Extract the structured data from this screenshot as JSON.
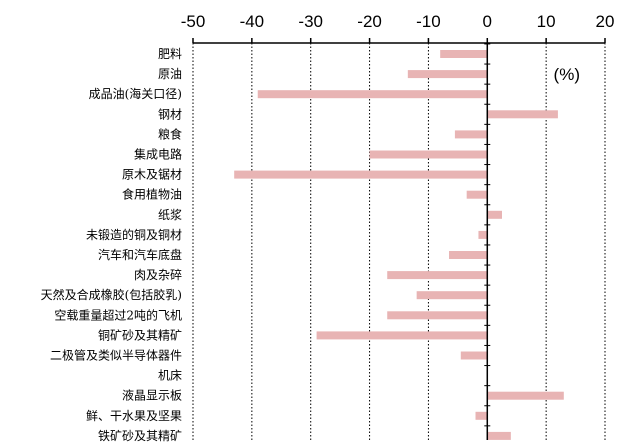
{
  "chart_data": {
    "type": "bar",
    "orientation": "horizontal",
    "unit_label": "(%)",
    "xlim": [
      -50,
      20
    ],
    "xticks": [
      -50,
      -40,
      -30,
      -20,
      -10,
      0,
      10,
      20
    ],
    "grid": "vertical dotted",
    "bar_color": "#e8b4b4",
    "categories": [
      "肥料",
      "原油",
      "成品油(海关口径)",
      "钢材",
      "粮食",
      "集成电路",
      "原木及锯材",
      "食用植物油",
      "纸浆",
      "未锻造的铜及铜材",
      "汽车和汽车底盘",
      "肉及杂碎",
      "天然及合成橡胶(包括胶乳)",
      "空载重量超过2吨的飞机",
      "铜矿砂及其精矿",
      "二极管及类似半导体器件",
      "机床",
      "液晶显示板",
      "鲜、干水果及坚果",
      "铁矿砂及其精矿"
    ],
    "values": [
      -8,
      -13.5,
      -39,
      12,
      -5.5,
      -20,
      -43,
      -3.5,
      2.5,
      -1.5,
      -6.5,
      -17,
      -12,
      -17,
      -29,
      -4.5,
      0,
      13,
      -2,
      4
    ]
  }
}
